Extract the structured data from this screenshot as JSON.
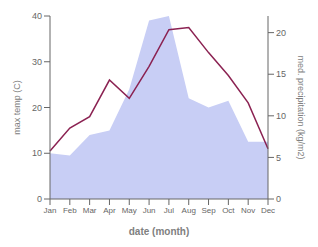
{
  "chart_data": {
    "type": "line",
    "categories": [
      "Jan",
      "Feb",
      "Mar",
      "Apr",
      "May",
      "Jun",
      "Jul",
      "Aug",
      "Sep",
      "Oct",
      "Nov",
      "Dec"
    ],
    "series": [
      {
        "type": "area",
        "color": "#c8cef5",
        "values": [
          10.0,
          9.5,
          14.0,
          15.0,
          24.0,
          39.0,
          40.0,
          22.0,
          20.0,
          21.5,
          12.5,
          12.5
        ]
      },
      {
        "type": "line",
        "color": "#8B2252",
        "values": [
          10.5,
          15.5,
          18.0,
          26.0,
          22.0,
          29.0,
          37.0,
          37.5,
          32.0,
          27.0,
          21.0,
          11.0
        ]
      }
    ],
    "xlabel": "date (month)",
    "ylabel": "max temp (C)",
    "y2label": "med. precipitation (kg/m2)",
    "ylim": [
      0,
      40
    ],
    "yticks": [
      0,
      10,
      20,
      30,
      40
    ],
    "y2lim": [
      0,
      22
    ],
    "y2ticks": [
      0,
      5,
      10,
      15,
      20
    ],
    "grid": false
  }
}
